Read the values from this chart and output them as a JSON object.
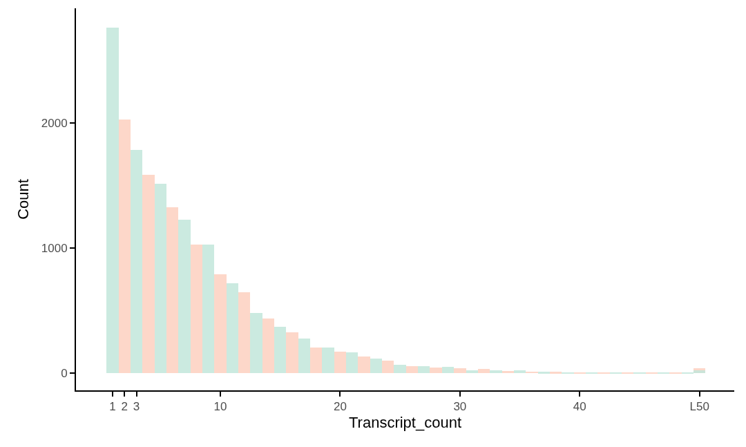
{
  "chart_data": {
    "type": "bar",
    "xlabel": "Transcript_count",
    "ylabel": "Count",
    "xlim": [
      -2.05,
      52.9
    ],
    "ylim": [
      -138,
      2917
    ],
    "xticks": [
      1,
      2,
      3,
      10,
      20,
      30,
      40,
      {
        "value": 50,
        "label": "L50"
      }
    ],
    "yticks": [
      0,
      1000,
      2000
    ],
    "series": [
      {
        "color": "#fdd0c0",
        "x": [
          2,
          4,
          6,
          8,
          10,
          12,
          14,
          16,
          18,
          20,
          22,
          24,
          26,
          28,
          30,
          32,
          34,
          36,
          38,
          40,
          42,
          44,
          46,
          48,
          50
        ],
        "values": [
          2028,
          1583,
          1326,
          1026,
          790,
          646,
          436,
          326,
          206,
          172,
          133,
          97,
          57,
          44,
          40,
          33,
          15,
          13,
          11,
          7,
          7,
          4,
          2,
          2,
          40
        ]
      },
      {
        "color": "#c2e6da",
        "x": [
          1,
          3,
          5,
          7,
          9,
          11,
          13,
          15,
          17,
          19,
          21,
          23,
          25,
          27,
          29,
          31,
          33,
          35,
          37,
          39,
          41,
          43,
          45,
          47,
          49,
          50
        ],
        "values": [
          2765,
          1784,
          1515,
          1227,
          1026,
          720,
          483,
          369,
          274,
          206,
          164,
          117,
          64,
          55,
          49,
          20,
          24,
          20,
          9,
          7,
          7,
          4,
          2,
          7,
          2,
          24
        ]
      }
    ]
  }
}
